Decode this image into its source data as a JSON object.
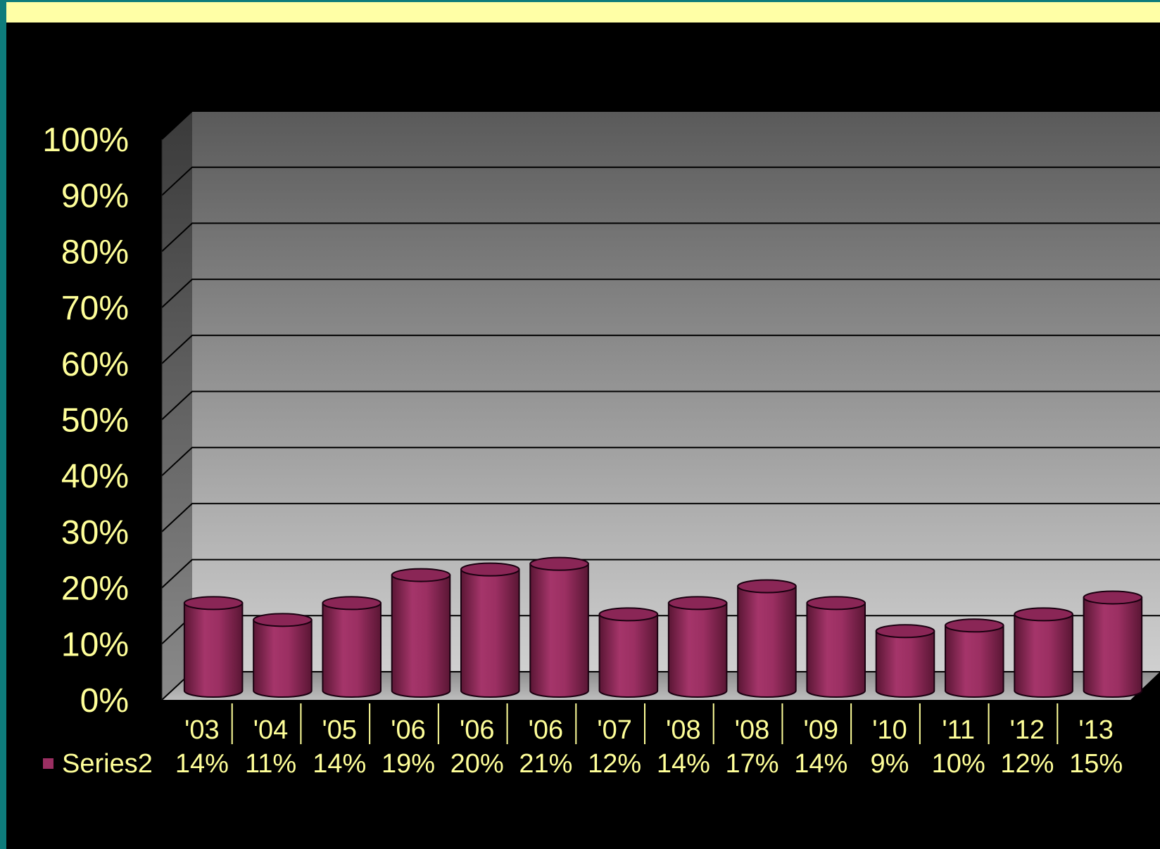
{
  "colors": {
    "page_background": "#000000",
    "left_accent": "#0e7c7b",
    "top_banner": "#ffffa6",
    "label_text": "#ffff99",
    "bar_fill": "#9b2f62",
    "bar_top": "#8a2656",
    "gridline": "#000000"
  },
  "chart_data": {
    "type": "bar",
    "style": "3d-cylinder",
    "title": "",
    "xlabel": "",
    "ylabel": "",
    "ylim": [
      0,
      100
    ],
    "y_ticks": [
      "0%",
      "10%",
      "20%",
      "30%",
      "40%",
      "50%",
      "60%",
      "70%",
      "80%",
      "90%",
      "100%"
    ],
    "y_tick_values": [
      0,
      10,
      20,
      30,
      40,
      50,
      60,
      70,
      80,
      90,
      100
    ],
    "categories": [
      "'03",
      "'04",
      "'05",
      "'06",
      "'06",
      "'06",
      "'07",
      "'08",
      "'08",
      "'09",
      "'10",
      "'11",
      "'12",
      "'13"
    ],
    "series": [
      {
        "name": "Series2",
        "values": [
          14,
          11,
          14,
          19,
          20,
          21,
          12,
          14,
          17,
          14,
          9,
          10,
          12,
          15
        ],
        "labels": [
          "14%",
          "11%",
          "14%",
          "19%",
          "20%",
          "21%",
          "12%",
          "14%",
          "17%",
          "14%",
          "9%",
          "10%",
          "12%",
          "15%"
        ]
      }
    ],
    "grid": true,
    "legend": "data-table",
    "data_table": true
  }
}
